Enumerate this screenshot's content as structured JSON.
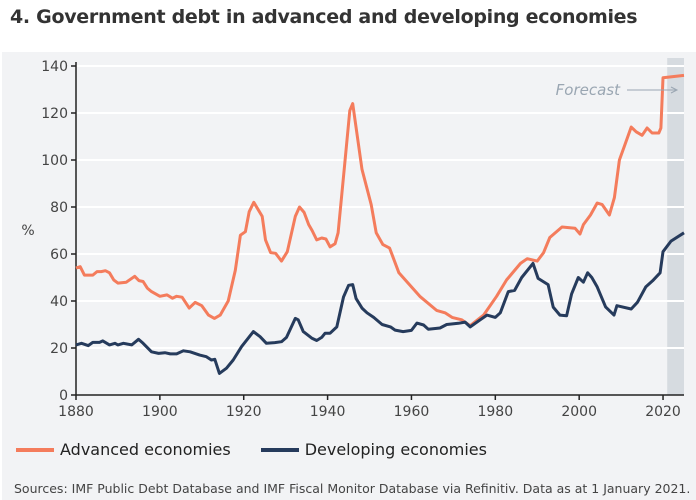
{
  "title": "4. Government debt in advanced and developing economies",
  "source": "Sources: IMF Public Debt Database and IMF Fiscal Monitor Database via Refinitiv. Data as at 1 January 2021.",
  "chart_data": {
    "type": "line",
    "title": "4. Government debt in advanced and developing economies",
    "xlabel": "",
    "ylabel": "%",
    "xlim": [
      1880,
      2025
    ],
    "ylim": [
      0,
      140
    ],
    "xticks": [
      1880,
      1900,
      1920,
      1940,
      1960,
      1980,
      2000,
      2020
    ],
    "yticks": [
      0,
      20,
      40,
      60,
      80,
      100,
      120,
      140
    ],
    "grid": "horizontal",
    "legend": "bottom",
    "annotation": {
      "text": "Forecast",
      "shaded_from": 2021,
      "shaded_to": 2025
    },
    "colors": {
      "advanced": "#f47c5c",
      "developing": "#263b5c",
      "forecast_shade": "#d6dbe0"
    },
    "series": [
      {
        "name": "Advanced economies",
        "points": [
          [
            1880,
            54
          ],
          [
            1881,
            54.6
          ],
          [
            1882,
            51
          ],
          [
            1884,
            51
          ],
          [
            1885,
            52.5
          ],
          [
            1886,
            52.5
          ],
          [
            1887,
            52.9
          ],
          [
            1888,
            52
          ],
          [
            1889,
            49
          ],
          [
            1890,
            47.6
          ],
          [
            1892,
            48
          ],
          [
            1894,
            50.5
          ],
          [
            1895,
            48.7
          ],
          [
            1896,
            48.3
          ],
          [
            1897,
            45.5
          ],
          [
            1898,
            44
          ],
          [
            1900,
            42
          ],
          [
            1901.7,
            42.6
          ],
          [
            1903,
            41.2
          ],
          [
            1904,
            42
          ],
          [
            1905.3,
            41.6
          ],
          [
            1907,
            37
          ],
          [
            1908.4,
            39.4
          ],
          [
            1910,
            38
          ],
          [
            1911.6,
            34
          ],
          [
            1913,
            32.6
          ],
          [
            1914.4,
            34
          ],
          [
            1916.3,
            40
          ],
          [
            1918,
            53
          ],
          [
            1919.2,
            68
          ],
          [
            1920.4,
            69.5
          ],
          [
            1921.3,
            78
          ],
          [
            1922.4,
            82
          ],
          [
            1924.4,
            76
          ],
          [
            1925.2,
            66
          ],
          [
            1926.4,
            60.6
          ],
          [
            1927.6,
            60.3
          ],
          [
            1929,
            57
          ],
          [
            1930.4,
            61
          ],
          [
            1932.3,
            76
          ],
          [
            1933.3,
            80
          ],
          [
            1934.4,
            77.7
          ],
          [
            1935.5,
            72.5
          ],
          [
            1936.3,
            70
          ],
          [
            1937.4,
            66
          ],
          [
            1938.6,
            66.8
          ],
          [
            1939.6,
            66.4
          ],
          [
            1940.6,
            63
          ],
          [
            1941.8,
            64.4
          ],
          [
            1942.5,
            69
          ],
          [
            1944.1,
            98.7
          ],
          [
            1945.3,
            121
          ],
          [
            1946,
            124
          ],
          [
            1948.2,
            96
          ],
          [
            1950.4,
            81
          ],
          [
            1951.6,
            69
          ],
          [
            1953.2,
            64
          ],
          [
            1954.8,
            62.5
          ],
          [
            1957,
            52
          ],
          [
            1958,
            50
          ],
          [
            1962,
            42
          ],
          [
            1966,
            36
          ],
          [
            1968,
            35
          ],
          [
            1969.7,
            33
          ],
          [
            1972,
            32
          ],
          [
            1974,
            29.5
          ],
          [
            1977.2,
            34
          ],
          [
            1980.3,
            42
          ],
          [
            1982.7,
            49
          ],
          [
            1986,
            56
          ],
          [
            1987.6,
            58
          ],
          [
            1990,
            57
          ],
          [
            1991.5,
            60.5
          ],
          [
            1993,
            67
          ],
          [
            1995.9,
            71.5
          ],
          [
            1999,
            71
          ],
          [
            2000.2,
            68.5
          ],
          [
            2001,
            72.5
          ],
          [
            2002.7,
            76.6
          ],
          [
            2004.3,
            81.7
          ],
          [
            2005.5,
            81
          ],
          [
            2007.2,
            76.6
          ],
          [
            2008.4,
            84
          ],
          [
            2009.6,
            100
          ],
          [
            2010.8,
            106
          ],
          [
            2012.4,
            114
          ],
          [
            2013.6,
            112
          ],
          [
            2015,
            110.5
          ],
          [
            2016.2,
            113.6
          ],
          [
            2017.4,
            111.5
          ],
          [
            2019,
            111.5
          ],
          [
            2019.5,
            113.6
          ],
          [
            2020,
            135
          ],
          [
            2025,
            136
          ]
        ]
      },
      {
        "name": "Developing economies",
        "points": [
          [
            1880,
            21.3
          ],
          [
            1881.3,
            22
          ],
          [
            1882.9,
            21
          ],
          [
            1884,
            22.4
          ],
          [
            1885.6,
            22.4
          ],
          [
            1886.4,
            23
          ],
          [
            1888,
            21.3
          ],
          [
            1889.3,
            22
          ],
          [
            1890,
            21.3
          ],
          [
            1891.3,
            22
          ],
          [
            1893.3,
            21.3
          ],
          [
            1894.9,
            23.7
          ],
          [
            1896,
            22
          ],
          [
            1898,
            18.4
          ],
          [
            1899.7,
            17.7
          ],
          [
            1901.2,
            18
          ],
          [
            1902.5,
            17.5
          ],
          [
            1904,
            17.5
          ],
          [
            1905.6,
            18.8
          ],
          [
            1907.2,
            18.4
          ],
          [
            1909.5,
            17
          ],
          [
            1911.1,
            16.3
          ],
          [
            1912.3,
            14.9
          ],
          [
            1913.1,
            15.2
          ],
          [
            1914.2,
            9.2
          ],
          [
            1915.9,
            11.4
          ],
          [
            1917.5,
            14.9
          ],
          [
            1919.5,
            20.6
          ],
          [
            1922.3,
            27
          ],
          [
            1923.9,
            24.8
          ],
          [
            1925.4,
            22
          ],
          [
            1927.4,
            22.3
          ],
          [
            1929,
            22.7
          ],
          [
            1930.2,
            24.5
          ],
          [
            1932.3,
            32.6
          ],
          [
            1933,
            32
          ],
          [
            1934.2,
            27
          ],
          [
            1936.2,
            24.2
          ],
          [
            1937.4,
            23.2
          ],
          [
            1938.6,
            24.5
          ],
          [
            1939.4,
            26.3
          ],
          [
            1940.6,
            26.3
          ],
          [
            1942.2,
            29
          ],
          [
            1943.8,
            41.7
          ],
          [
            1945,
            46.7
          ],
          [
            1946,
            47
          ],
          [
            1946.8,
            41
          ],
          [
            1948.2,
            37
          ],
          [
            1949.4,
            35
          ],
          [
            1951,
            33
          ],
          [
            1953,
            30
          ],
          [
            1955,
            29
          ],
          [
            1956.1,
            27.6
          ],
          [
            1958,
            27
          ],
          [
            1960,
            27.5
          ],
          [
            1961.3,
            30.6
          ],
          [
            1962.9,
            29.8
          ],
          [
            1964,
            28
          ],
          [
            1966.8,
            28.5
          ],
          [
            1968.4,
            30
          ],
          [
            1971.2,
            30.5
          ],
          [
            1972.8,
            31
          ],
          [
            1974,
            29
          ],
          [
            1976.4,
            32
          ],
          [
            1978,
            34
          ],
          [
            1980,
            33
          ],
          [
            1981.2,
            35
          ],
          [
            1983.1,
            44
          ],
          [
            1984.6,
            44.5
          ],
          [
            1986.3,
            50
          ],
          [
            1989,
            56
          ],
          [
            1990.2,
            49.6
          ],
          [
            1992.6,
            47
          ],
          [
            1993.8,
            37.4
          ],
          [
            1995.4,
            34
          ],
          [
            1997,
            33.7
          ],
          [
            1998.2,
            43
          ],
          [
            1999.8,
            50
          ],
          [
            2001,
            48
          ],
          [
            2002,
            52
          ],
          [
            2003,
            50
          ],
          [
            2004.3,
            46
          ],
          [
            2006.3,
            37.5
          ],
          [
            2008.3,
            34
          ],
          [
            2009,
            38
          ],
          [
            2012.4,
            36.6
          ],
          [
            2013.9,
            39.5
          ],
          [
            2015.9,
            46
          ],
          [
            2017.5,
            48.6
          ],
          [
            2019.3,
            52
          ],
          [
            2020,
            61
          ],
          [
            2021.9,
            65.5
          ],
          [
            2025,
            69
          ]
        ]
      }
    ]
  }
}
